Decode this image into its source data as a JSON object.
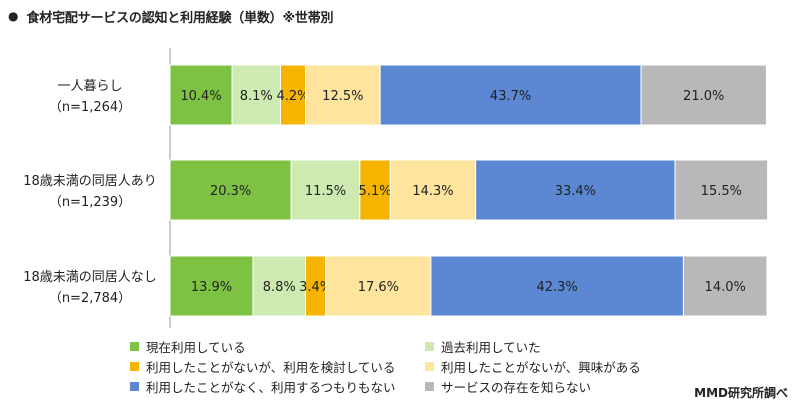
{
  "header": {
    "bullet": "●",
    "title": "食材宅配サービスの認知と利用経験（単数）※世帯別"
  },
  "source": "MMD研究所調べ",
  "colors": {
    "current": "#7DC242",
    "past": "#CDEAB0",
    "considering": "#F6B400",
    "interested": "#FEE49C",
    "no_plan": "#5B87D3",
    "unknown": "#B8B8B8"
  },
  "chart_data": {
    "type": "bar",
    "orientation": "horizontal",
    "stacked": true,
    "percent_scale": [
      0,
      100
    ],
    "categories": [
      {
        "label": "一人暮らし",
        "sub": "（n=1,264）"
      },
      {
        "label": "18歳未満の同居人あり",
        "sub": "（n=1,239）"
      },
      {
        "label": "18歳未満の同居人なし",
        "sub": "（n=2,784）"
      }
    ],
    "series": [
      {
        "key": "current",
        "name": "現在利用している",
        "values": [
          10.4,
          20.3,
          13.9
        ]
      },
      {
        "key": "past",
        "name": "過去利用していた",
        "values": [
          8.1,
          11.5,
          8.8
        ]
      },
      {
        "key": "considering",
        "name": "利用したことがないが、利用を検討している",
        "values": [
          4.2,
          5.1,
          3.4
        ]
      },
      {
        "key": "interested",
        "name": "利用したことがないが、興味がある",
        "values": [
          12.5,
          14.3,
          17.6
        ]
      },
      {
        "key": "no_plan",
        "name": "利用したことがなく、利用するつもりもない",
        "values": [
          43.7,
          33.4,
          42.3
        ]
      },
      {
        "key": "unknown",
        "name": "サービスの存在を知らない",
        "values": [
          21.0,
          15.5,
          14.0
        ]
      }
    ],
    "legend_position": "bottom",
    "grid": false
  }
}
